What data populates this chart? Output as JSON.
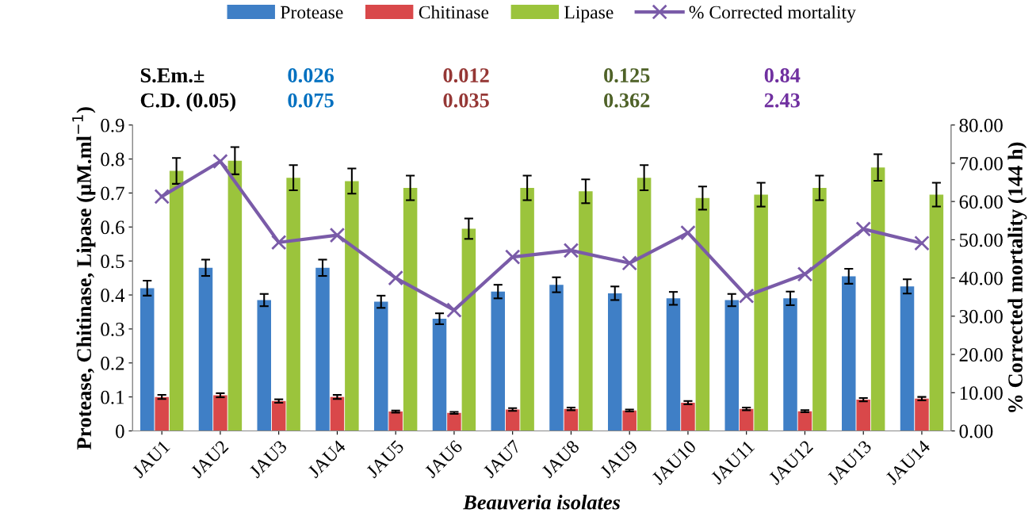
{
  "chart_data": {
    "type": "bar",
    "xlabel": "Beauveria isolates",
    "ylabel": "Protease, Chitinase, Lipase (µM.ml$^{−1}$)",
    "y2label": "% Corrected mortality (144 h)",
    "categories": [
      "JAU1",
      "JAU2",
      "JAU3",
      "JAU4",
      "JAU5",
      "JAU6",
      "JAU7",
      "JAU8",
      "JAU9",
      "JAU10",
      "JAU11",
      "JAU12",
      "JAU13",
      "JAU14"
    ],
    "series": [
      {
        "name": "Protease",
        "color": "#3f7fc6",
        "values": [
          0.42,
          0.48,
          0.385,
          0.48,
          0.38,
          0.33,
          0.41,
          0.43,
          0.405,
          0.39,
          0.385,
          0.39,
          0.455,
          0.425
        ],
        "errors": [
          0.022,
          0.024,
          0.018,
          0.024,
          0.018,
          0.016,
          0.02,
          0.022,
          0.02,
          0.019,
          0.018,
          0.02,
          0.022,
          0.021
        ]
      },
      {
        "name": "Chitinase",
        "color": "#d9484a",
        "values": [
          0.1,
          0.105,
          0.088,
          0.1,
          0.057,
          0.053,
          0.063,
          0.065,
          0.06,
          0.083,
          0.065,
          0.058,
          0.092,
          0.095
        ],
        "errors": [
          0.006,
          0.006,
          0.005,
          0.006,
          0.003,
          0.003,
          0.004,
          0.004,
          0.003,
          0.005,
          0.004,
          0.003,
          0.005,
          0.005
        ]
      },
      {
        "name": "Lipase",
        "color": "#9bc43c",
        "values": [
          0.765,
          0.795,
          0.745,
          0.735,
          0.715,
          0.595,
          0.715,
          0.705,
          0.745,
          0.685,
          0.695,
          0.715,
          0.775,
          0.695
        ],
        "errors": [
          0.038,
          0.04,
          0.037,
          0.037,
          0.036,
          0.03,
          0.036,
          0.035,
          0.037,
          0.034,
          0.035,
          0.036,
          0.039,
          0.035
        ]
      },
      {
        "name": "% Corrected mortality",
        "type": "line",
        "axis": "y2",
        "color": "#7a5ba8",
        "marker": "cross",
        "values": [
          61.3,
          70.5,
          49.3,
          51.2,
          40.0,
          31.6,
          45.5,
          47.2,
          43.9,
          51.8,
          35.3,
          41.0,
          52.8,
          49.1
        ]
      }
    ],
    "ylim": [
      0,
      0.9
    ],
    "yticks": [
      {
        "value": 0,
        "label": "0"
      },
      0.1,
      0.2,
      0.3,
      0.4,
      0.5,
      0.6,
      0.7,
      0.8,
      0.9
    ],
    "y2lim": [
      0,
      80
    ],
    "y2ticks": [
      {
        "value": 0,
        "label": "0.00"
      },
      {
        "value": 10,
        "label": "10.00"
      },
      {
        "value": 20,
        "label": "20.00"
      },
      {
        "value": 30,
        "label": "30.00"
      },
      {
        "value": 40,
        "label": "40.00"
      },
      {
        "value": 50,
        "label": "50.00"
      },
      {
        "value": 60,
        "label": "60.00"
      },
      {
        "value": 70,
        "label": "70.00"
      },
      {
        "value": 80,
        "label": "80.00"
      }
    ],
    "legend": "top",
    "grid": false,
    "annotations": [
      "S.Em.±",
      "0.026",
      "0.012",
      "0.125",
      "0.84",
      "C.D. (0.05)",
      "0.075",
      "0.035",
      "0.362",
      "2.43"
    ]
  }
}
